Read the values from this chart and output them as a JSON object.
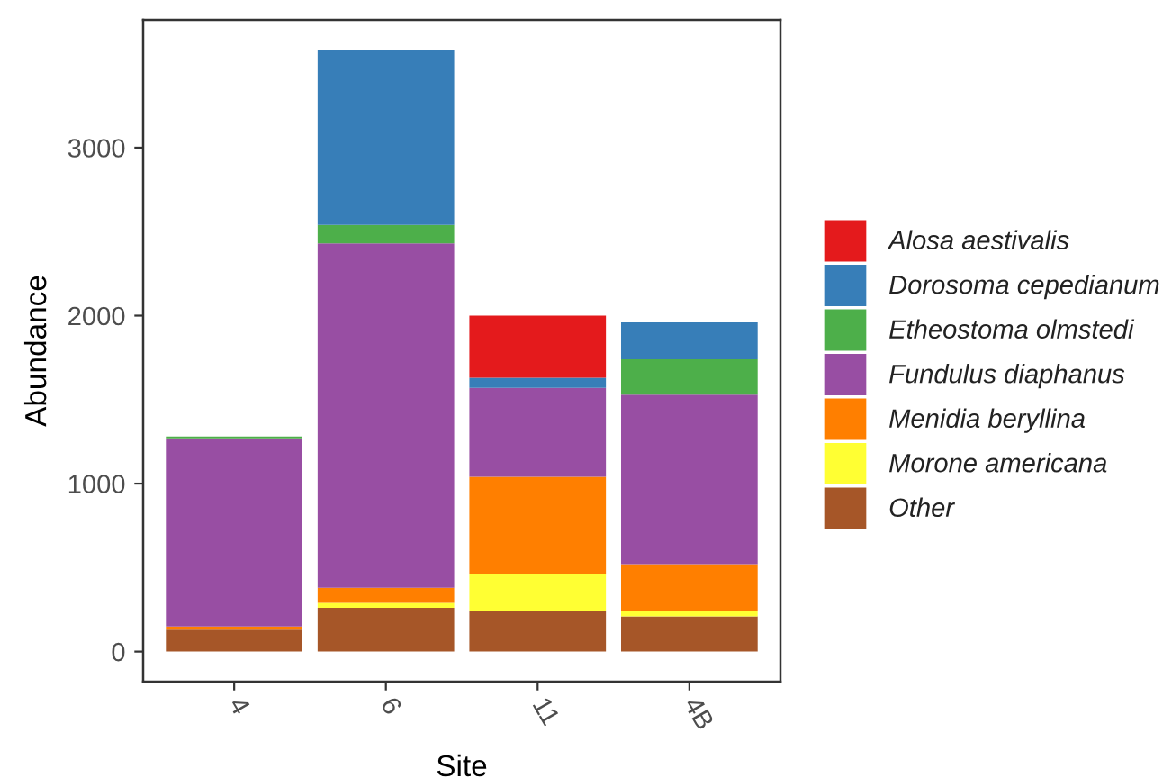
{
  "chart_data": {
    "type": "bar",
    "stacked": true,
    "xlabel": "Site",
    "ylabel": "Abundance",
    "categories": [
      "4",
      "6",
      "11",
      "4B"
    ],
    "series": [
      {
        "name": "Other",
        "color": "#a65628",
        "values": [
          130,
          260,
          240,
          210
        ]
      },
      {
        "name": "Morone americana",
        "color": "#ffff33",
        "values": [
          null,
          30,
          220,
          30
        ]
      },
      {
        "name": "Menidia beryllina",
        "color": "#ff7f00",
        "values": [
          20,
          90,
          580,
          280
        ]
      },
      {
        "name": "Fundulus diaphanus",
        "color": "#984ea3",
        "values": [
          1120,
          2050,
          530,
          1010
        ]
      },
      {
        "name": "Etheostoma olmstedi",
        "color": "#4daf4a",
        "values": [
          10,
          110,
          null,
          210
        ]
      },
      {
        "name": "Dorosoma cepedianum",
        "color": "#377eb8",
        "values": [
          null,
          1040,
          60,
          220
        ]
      },
      {
        "name": "Alosa aestivalis",
        "color": "#e41a1c",
        "values": [
          null,
          null,
          370,
          null
        ]
      }
    ],
    "ylim": [
      -179,
      3761
    ],
    "yticks": [
      0,
      1000,
      2000,
      3000
    ],
    "legend": "right"
  }
}
